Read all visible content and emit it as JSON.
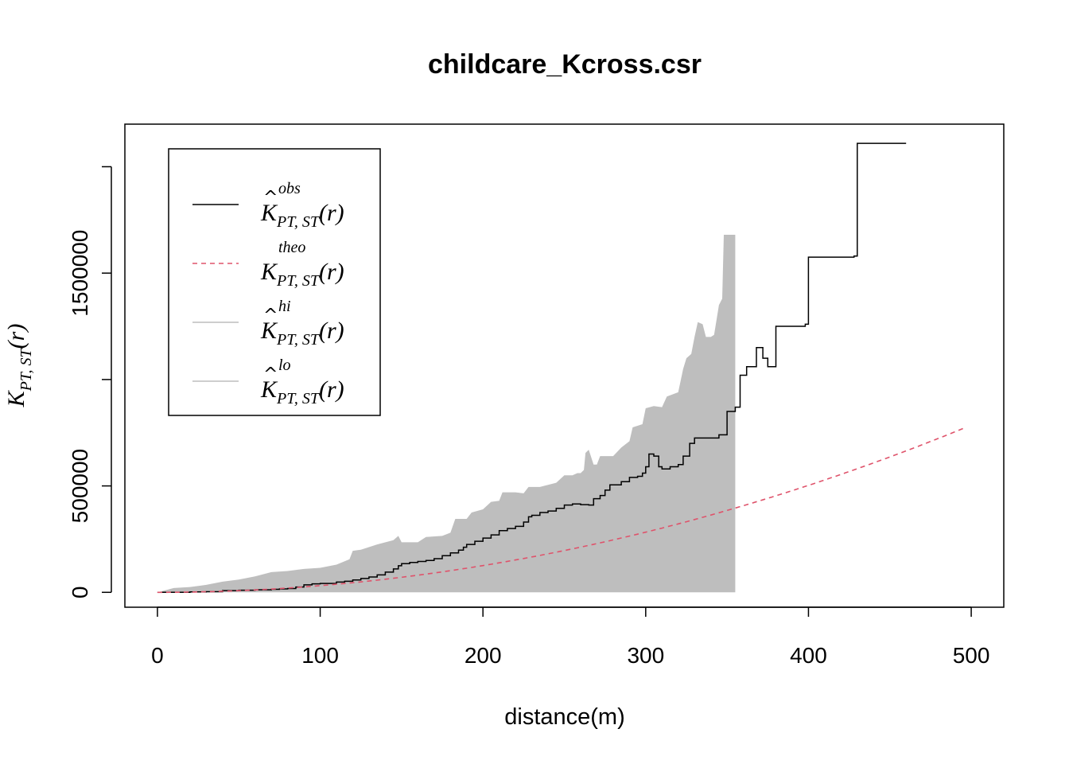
{
  "chart_data": {
    "type": "line",
    "title": "childcare_Kcross.csr",
    "xlabel": "distance(m)",
    "ylabel": {
      "base": "K",
      "sub": "PT, ST",
      "arg": "(r)"
    },
    "xlim": [
      -20,
      520
    ],
    "ylim": [
      -70000,
      2200000
    ],
    "x_ticks": [
      {
        "value": 0,
        "label": "0"
      },
      {
        "value": 100,
        "label": "100"
      },
      {
        "value": 200,
        "label": "200"
      },
      {
        "value": 300,
        "label": "300"
      },
      {
        "value": 400,
        "label": "400"
      },
      {
        "value": 500,
        "label": "500"
      }
    ],
    "y_ticks": [
      {
        "value": 0,
        "label": "0"
      },
      {
        "value": 500000,
        "label": "500000"
      },
      {
        "value": 1000000,
        "label": ""
      },
      {
        "value": 1500000,
        "label": "1500000"
      },
      {
        "value": 2000000,
        "label": ""
      }
    ],
    "grid": false,
    "legend_position": "top-left",
    "legend": [
      {
        "base": "K",
        "hat": true,
        "sup": "obs",
        "sub": "PT, ST",
        "arg": "(r)",
        "style": "solid",
        "color": "#000000"
      },
      {
        "base": "K",
        "hat": false,
        "sup": "theo",
        "sub": "PT, ST",
        "arg": "(r)",
        "style": "dashed",
        "color": "#DF536B"
      },
      {
        "base": "K",
        "hat": true,
        "sup": "hi",
        "sub": "PT, ST",
        "arg": "(r)",
        "style": "solid",
        "color": "#BEBEBE"
      },
      {
        "base": "K",
        "hat": true,
        "sup": "lo",
        "sub": "PT, ST",
        "arg": "(r)",
        "style": "solid",
        "color": "#BEBEBE"
      }
    ],
    "envelope": {
      "name": "hi/lo envelope",
      "color": "#BEBEBE",
      "lo": [
        [
          0,
          0
        ],
        [
          355,
          0
        ]
      ],
      "hi": [
        [
          0,
          0
        ],
        [
          5,
          10000
        ],
        [
          10,
          20000
        ],
        [
          20,
          25000
        ],
        [
          30,
          35000
        ],
        [
          40,
          50000
        ],
        [
          50,
          60000
        ],
        [
          60,
          75000
        ],
        [
          70,
          95000
        ],
        [
          80,
          100000
        ],
        [
          90,
          110000
        ],
        [
          100,
          115000
        ],
        [
          110,
          130000
        ],
        [
          118,
          155000
        ],
        [
          120,
          195000
        ],
        [
          125,
          200000
        ],
        [
          135,
          225000
        ],
        [
          145,
          245000
        ],
        [
          148,
          265000
        ],
        [
          150,
          235000
        ],
        [
          160,
          235000
        ],
        [
          165,
          260000
        ],
        [
          175,
          265000
        ],
        [
          180,
          280000
        ],
        [
          183,
          345000
        ],
        [
          190,
          345000
        ],
        [
          193,
          375000
        ],
        [
          200,
          390000
        ],
        [
          205,
          425000
        ],
        [
          210,
          430000
        ],
        [
          212,
          470000
        ],
        [
          220,
          470000
        ],
        [
          225,
          465000
        ],
        [
          228,
          495000
        ],
        [
          235,
          495000
        ],
        [
          245,
          515000
        ],
        [
          250,
          550000
        ],
        [
          255,
          550000
        ],
        [
          258,
          560000
        ],
        [
          260,
          560000
        ],
        [
          262,
          575000
        ],
        [
          263,
          655000
        ],
        [
          265,
          670000
        ],
        [
          268,
          600000
        ],
        [
          270,
          600000
        ],
        [
          272,
          640000
        ],
        [
          280,
          640000
        ],
        [
          285,
          680000
        ],
        [
          290,
          710000
        ],
        [
          292,
          775000
        ],
        [
          298,
          790000
        ],
        [
          300,
          865000
        ],
        [
          305,
          875000
        ],
        [
          310,
          870000
        ],
        [
          313,
          920000
        ],
        [
          320,
          940000
        ],
        [
          323,
          1050000
        ],
        [
          325,
          1100000
        ],
        [
          328,
          1120000
        ],
        [
          330,
          1200000
        ],
        [
          332,
          1270000
        ],
        [
          335,
          1260000
        ],
        [
          337,
          1200000
        ],
        [
          340,
          1200000
        ],
        [
          342,
          1210000
        ],
        [
          345,
          1350000
        ],
        [
          347,
          1380000
        ],
        [
          348,
          1680000
        ],
        [
          355,
          1680000
        ]
      ]
    },
    "series": [
      {
        "name": "obs",
        "color": "#000000",
        "style": "solid",
        "step": true,
        "points": [
          [
            0,
            0
          ],
          [
            20,
            2000
          ],
          [
            30,
            3000
          ],
          [
            40,
            8000
          ],
          [
            50,
            10000
          ],
          [
            60,
            12000
          ],
          [
            70,
            14000
          ],
          [
            75,
            16000
          ],
          [
            80,
            18000
          ],
          [
            85,
            25000
          ],
          [
            90,
            35000
          ],
          [
            95,
            40000
          ],
          [
            100,
            42000
          ],
          [
            110,
            48000
          ],
          [
            115,
            52000
          ],
          [
            120,
            58000
          ],
          [
            125,
            65000
          ],
          [
            130,
            72000
          ],
          [
            135,
            82000
          ],
          [
            140,
            95000
          ],
          [
            145,
            110000
          ],
          [
            148,
            125000
          ],
          [
            150,
            135000
          ],
          [
            155,
            140000
          ],
          [
            160,
            145000
          ],
          [
            165,
            150000
          ],
          [
            170,
            158000
          ],
          [
            175,
            172000
          ],
          [
            180,
            185000
          ],
          [
            185,
            198000
          ],
          [
            188,
            212000
          ],
          [
            190,
            225000
          ],
          [
            195,
            240000
          ],
          [
            200,
            255000
          ],
          [
            205,
            270000
          ],
          [
            210,
            290000
          ],
          [
            215,
            300000
          ],
          [
            220,
            310000
          ],
          [
            225,
            330000
          ],
          [
            228,
            355000
          ],
          [
            230,
            362000
          ],
          [
            235,
            375000
          ],
          [
            240,
            382000
          ],
          [
            245,
            395000
          ],
          [
            250,
            410000
          ],
          [
            255,
            415000
          ],
          [
            260,
            412000
          ],
          [
            265,
            410000
          ],
          [
            268,
            440000
          ],
          [
            272,
            455000
          ],
          [
            275,
            480000
          ],
          [
            278,
            505000
          ],
          [
            285,
            520000
          ],
          [
            290,
            540000
          ],
          [
            295,
            545000
          ],
          [
            298,
            560000
          ],
          [
            300,
            590000
          ],
          [
            302,
            650000
          ],
          [
            305,
            640000
          ],
          [
            308,
            590000
          ],
          [
            310,
            580000
          ],
          [
            315,
            590000
          ],
          [
            320,
            600000
          ],
          [
            323,
            640000
          ],
          [
            327,
            700000
          ],
          [
            330,
            725000
          ],
          [
            345,
            740000
          ],
          [
            350,
            850000
          ],
          [
            355,
            870000
          ],
          [
            358,
            1020000
          ],
          [
            362,
            1060000
          ],
          [
            368,
            1150000
          ],
          [
            372,
            1100000
          ],
          [
            375,
            1060000
          ],
          [
            380,
            1250000
          ],
          [
            398,
            1260000
          ],
          [
            400,
            1575000
          ],
          [
            428,
            1580000
          ],
          [
            430,
            2110000
          ],
          [
            460,
            2110000
          ]
        ]
      },
      {
        "name": "theo",
        "color": "#DF536B",
        "style": "dashed",
        "function": "pi*r^2",
        "x_range": [
          0,
          495
        ]
      }
    ]
  }
}
